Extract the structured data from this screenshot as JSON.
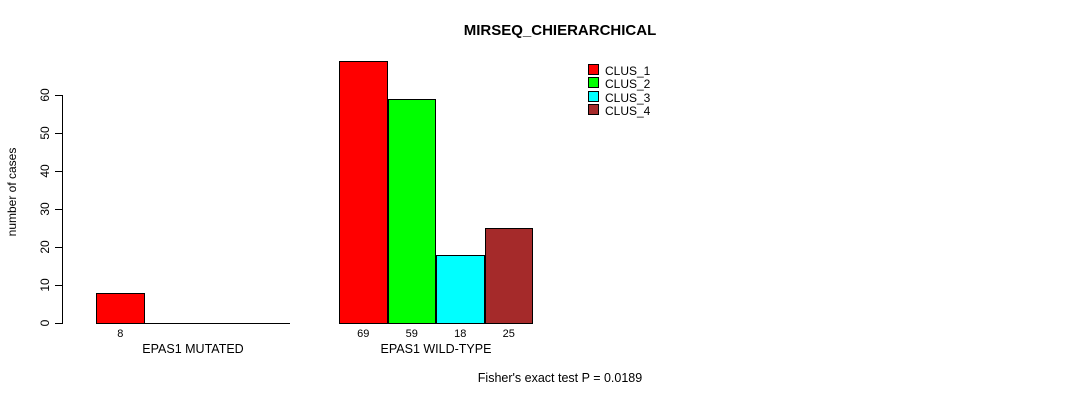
{
  "page": {
    "title": "MIRSEQ_CHIERARCHICAL",
    "footer": "Fisher's exact test P = 0.0189"
  },
  "chart_data": {
    "type": "bar",
    "title": "MIRSEQ_CHIERARCHICAL",
    "xlabel": "",
    "ylabel": "number of cases",
    "ylim": [
      0,
      60
    ],
    "yticks": [
      0,
      10,
      20,
      30,
      40,
      50,
      60
    ],
    "categories": [
      "EPAS1 MUTATED",
      "EPAS1 WILD-TYPE"
    ],
    "series": [
      {
        "name": "CLUS_1",
        "color": "#ff0000",
        "values": [
          8,
          69
        ]
      },
      {
        "name": "CLUS_2",
        "color": "#00ff00",
        "values": [
          0,
          59
        ]
      },
      {
        "name": "CLUS_3",
        "color": "#00ffff",
        "values": [
          0,
          18
        ]
      },
      {
        "name": "CLUS_4",
        "color": "#a52a2a",
        "values": [
          0,
          25
        ]
      }
    ],
    "bar_value_labels": [
      [
        8,
        null,
        null,
        null
      ],
      [
        69,
        59,
        18,
        25
      ]
    ],
    "legend": {
      "position": "top-right",
      "entries": [
        "CLUS_1",
        "CLUS_2",
        "CLUS_3",
        "CLUS_4"
      ],
      "colors": [
        "#ff0000",
        "#00ff00",
        "#00ffff",
        "#a52a2a"
      ]
    },
    "grid": false,
    "annotation": "Fisher's exact test P = 0.0189",
    "axis_color": "#000000",
    "text_color": "#000000",
    "background_color": "#ffffff"
  }
}
